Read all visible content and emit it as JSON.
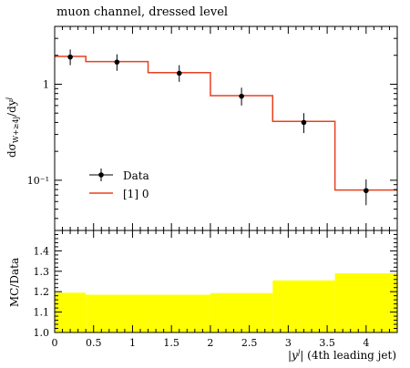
{
  "chart_data": {
    "type": "line",
    "title": "muon channel, dressed level",
    "main": {
      "ylabel": "dσ_{W+≥4j}/dy^j",
      "yscale": "log",
      "ylim": [
        0.03,
        4.0
      ],
      "xlim": [
        0,
        4.4
      ],
      "y_ticks": [
        {
          "value": 0.1,
          "label": "10⁻¹"
        },
        {
          "value": 1,
          "label": "1"
        }
      ],
      "series": [
        {
          "name": "Data",
          "kind": "points",
          "color": "#000000",
          "points": [
            {
              "x": 0.2,
              "y": 1.92,
              "lo": 1.58,
              "hi": 2.3
            },
            {
              "x": 0.8,
              "y": 1.7,
              "lo": 1.38,
              "hi": 2.05
            },
            {
              "x": 1.6,
              "y": 1.3,
              "lo": 1.06,
              "hi": 1.58
            },
            {
              "x": 2.4,
              "y": 0.75,
              "lo": 0.6,
              "hi": 0.92
            },
            {
              "x": 3.2,
              "y": 0.4,
              "lo": 0.31,
              "hi": 0.5
            },
            {
              "x": 4.0,
              "y": 0.078,
              "lo": 0.055,
              "hi": 0.102
            }
          ]
        },
        {
          "name": "[1] 0",
          "kind": "step",
          "color": "#e8401e",
          "bins": [
            {
              "x0": 0.0,
              "x1": 0.4,
              "y": 1.95
            },
            {
              "x0": 0.4,
              "x1": 1.2,
              "y": 1.72
            },
            {
              "x0": 1.2,
              "x1": 2.0,
              "y": 1.32
            },
            {
              "x0": 2.0,
              "x1": 2.8,
              "y": 0.76
            },
            {
              "x0": 2.8,
              "x1": 3.6,
              "y": 0.41
            },
            {
              "x0": 3.6,
              "x1": 4.4,
              "y": 0.079
            }
          ]
        }
      ],
      "legend": "lower-left"
    },
    "ratio": {
      "ylabel": "MC/Data",
      "ylim": [
        1.0,
        1.5
      ],
      "y_ticks": [
        1.0,
        1.1,
        1.2,
        1.3,
        1.4
      ],
      "xlabel": "|y^j| (4th leading jet)",
      "x_ticks": [
        0,
        0.5,
        1,
        1.5,
        2,
        2.5,
        3,
        3.5,
        4
      ],
      "band_color": "#ffff00",
      "bins": [
        {
          "x0": 0.0,
          "x1": 0.4,
          "y": 1.195
        },
        {
          "x0": 0.4,
          "x1": 1.2,
          "y": 1.185
        },
        {
          "x0": 1.2,
          "x1": 2.0,
          "y": 1.185
        },
        {
          "x0": 2.0,
          "x1": 2.8,
          "y": 1.193
        },
        {
          "x0": 2.8,
          "x1": 3.6,
          "y": 1.255
        },
        {
          "x0": 3.6,
          "x1": 4.4,
          "y": 1.29
        }
      ]
    }
  }
}
